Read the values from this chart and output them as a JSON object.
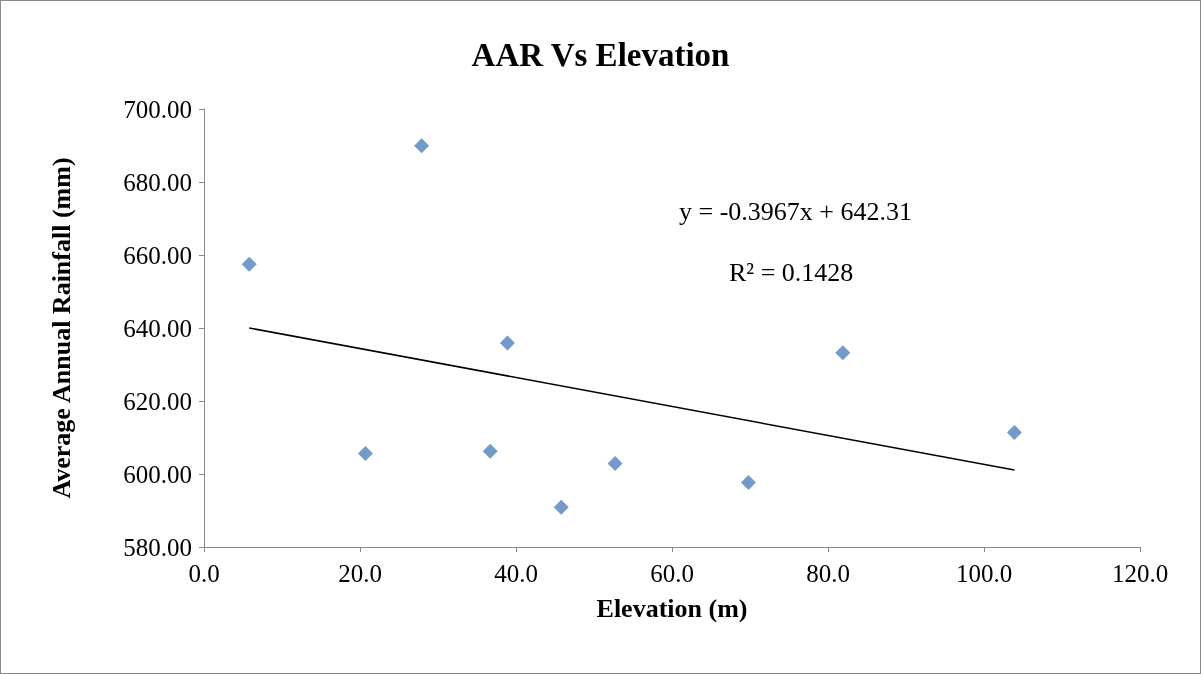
{
  "chart_data": {
    "type": "scatter",
    "title": "AAR Vs Elevation",
    "xlabel": "Elevation (m)",
    "ylabel": "Average Annual Rainfall (mm)",
    "annotations": [
      "y = -0.3967x + 642.31",
      "R² = 0.1428"
    ],
    "series": [
      {
        "color": "#4f81bd",
        "marker": "diamond",
        "x": [
          5.8,
          27.9,
          20.7,
          36.7,
          38.9,
          45.8,
          52.7,
          69.8,
          81.9,
          103.9
        ],
        "values": [
          657.5,
          689.9,
          605.6,
          606.2,
          635.9,
          590.9,
          602.9,
          597.7,
          633.2,
          611.4
        ]
      },
      {
        "type": "line",
        "color": "#000000",
        "marker": "none",
        "x": [
          5.8,
          103.9
        ],
        "values": [
          640.0,
          601.1
        ]
      }
    ],
    "xlim": [
      0,
      120
    ],
    "xticks": [
      {
        "value": 0,
        "label": "0.0"
      },
      {
        "value": 20,
        "label": "20.0"
      },
      {
        "value": 40,
        "label": "40.0"
      },
      {
        "value": 60,
        "label": "60.0"
      },
      {
        "value": 80,
        "label": "80.0"
      },
      {
        "value": 100,
        "label": "100.0"
      },
      {
        "value": 120,
        "label": "120.0"
      }
    ],
    "ylim": [
      580,
      700
    ],
    "yticks": [
      {
        "value": 580,
        "label": "580.00"
      },
      {
        "value": 600,
        "label": "600.00"
      },
      {
        "value": 620,
        "label": "620.00"
      },
      {
        "value": 640,
        "label": "640.00"
      },
      {
        "value": 660,
        "label": "660.00"
      },
      {
        "value": 680,
        "label": "680.00"
      },
      {
        "value": 700,
        "label": "700.00"
      }
    ],
    "grid": false
  }
}
